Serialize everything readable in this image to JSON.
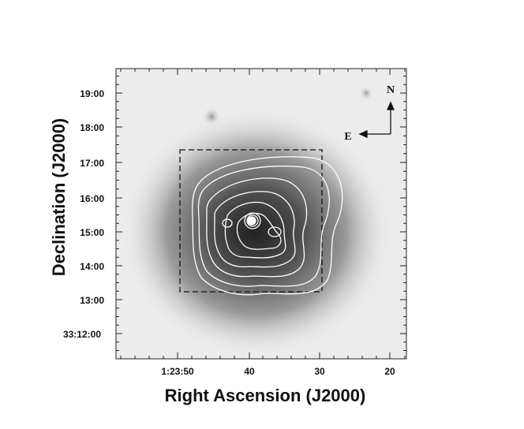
{
  "chart_data": {
    "type": "image",
    "xlabel": "Right Ascension (J2000)",
    "ylabel": "Declination (J2000)",
    "x_ticks": [
      "1:23:50",
      "40",
      "30",
      "20"
    ],
    "y_ticks": [
      "33:12:00",
      "13:00",
      "14:00",
      "15:00",
      "16:00",
      "17:00",
      "18:00",
      "19:00"
    ],
    "compass": {
      "north": "N",
      "east": "E"
    },
    "colormap": "grayscale",
    "contours": "white",
    "region_box": "dashed"
  }
}
